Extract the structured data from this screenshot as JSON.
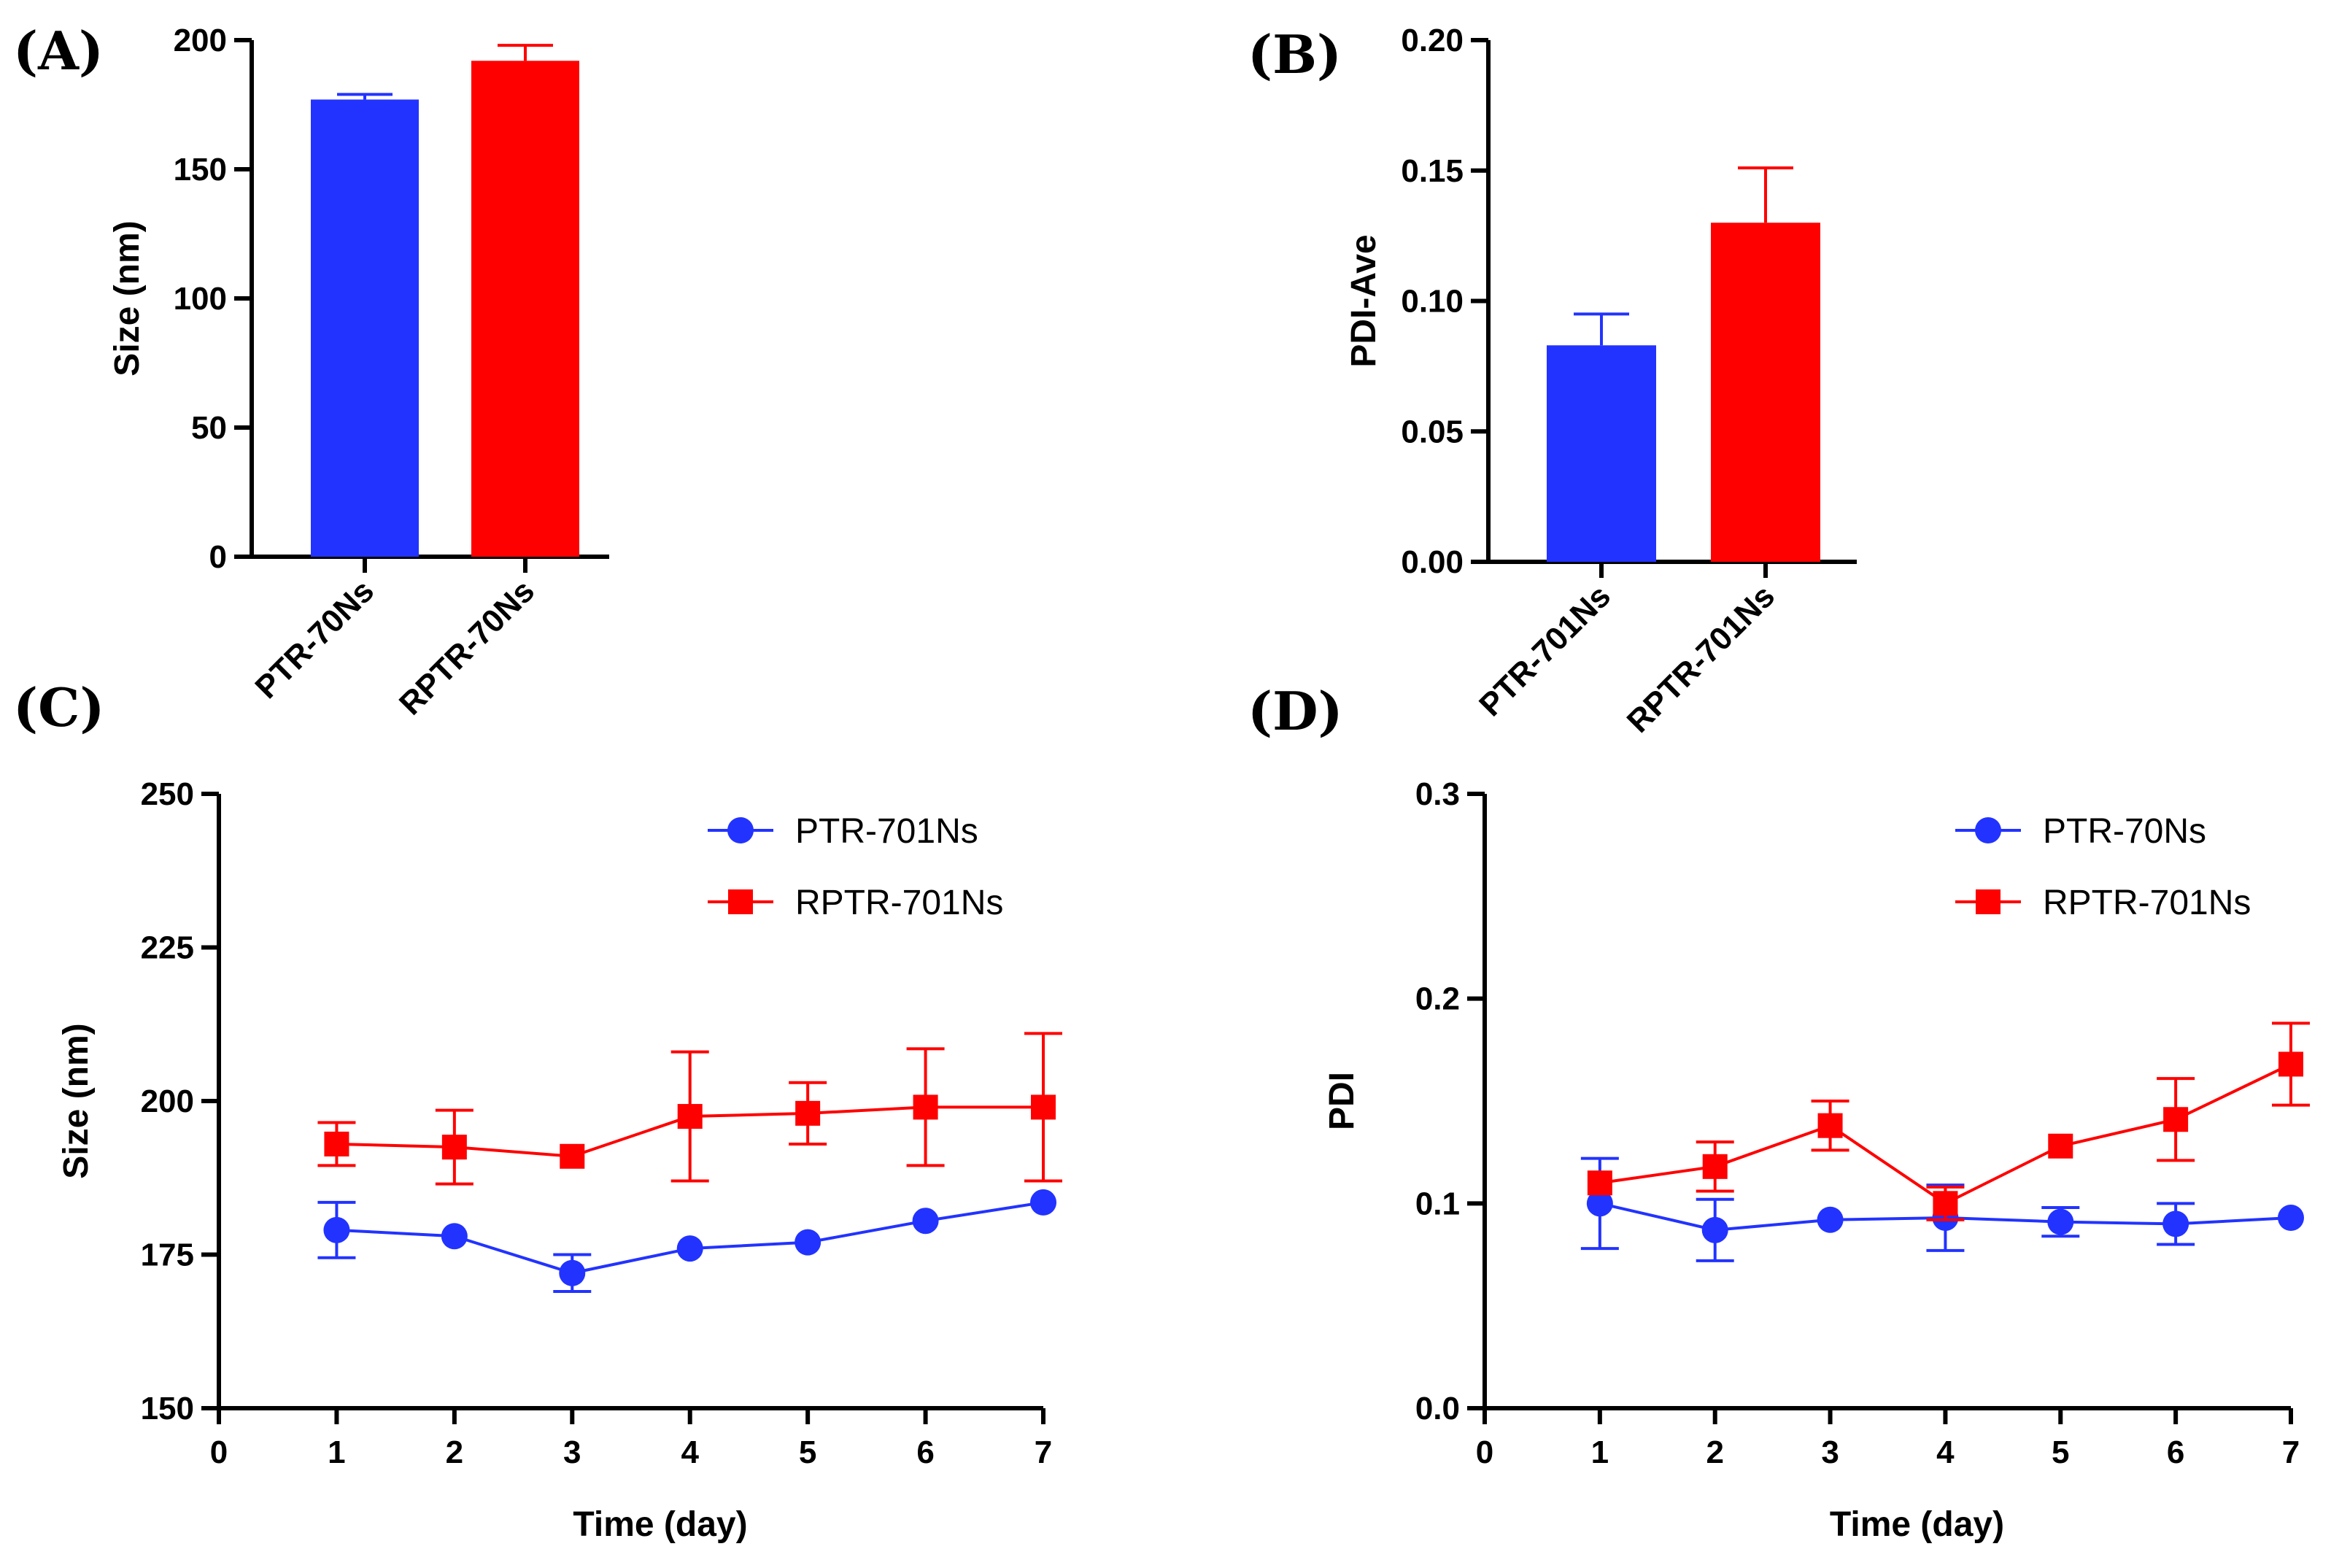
{
  "panels": [
    {
      "label": "(A)"
    },
    {
      "label": "(B)"
    },
    {
      "label": "(C)"
    },
    {
      "label": "(D)"
    }
  ],
  "chart_data": [
    {
      "id": "A",
      "type": "bar",
      "ylabel": "Size (nm)",
      "ylim": [
        0,
        200
      ],
      "yticks": [
        0,
        50,
        100,
        150,
        200
      ],
      "categories": [
        "PTR-70Ns",
        "RPTR-70Ns"
      ],
      "values": [
        177,
        192
      ],
      "errors": [
        2,
        6
      ],
      "colors": [
        "#2233ff",
        "#ff0000"
      ]
    },
    {
      "id": "B",
      "type": "bar",
      "ylabel": "PDI-Ave",
      "ylim": [
        0,
        0.2
      ],
      "yticks": [
        "0.00",
        "0.05",
        "0.10",
        "0.15",
        "0.20"
      ],
      "categories": [
        "PTR-701Ns",
        "RPTR-701Ns"
      ],
      "values": [
        0.083,
        0.13
      ],
      "errors": [
        0.012,
        0.021
      ],
      "colors": [
        "#2233ff",
        "#ff0000"
      ]
    },
    {
      "id": "C",
      "type": "line",
      "xlabel": "Time (day)",
      "ylabel": "Size (nm)",
      "xlim": [
        0,
        7
      ],
      "ylim": [
        150,
        250
      ],
      "xticks": [
        0,
        1,
        2,
        3,
        4,
        5,
        6,
        7
      ],
      "yticks": [
        150,
        175,
        200,
        225,
        250
      ],
      "x": [
        1,
        2,
        3,
        4,
        5,
        6,
        7
      ],
      "legend_position": "top-right",
      "series": [
        {
          "name": "PTR-701Ns",
          "marker": "circle",
          "color": "#2233ff",
          "values": [
            179,
            178,
            172,
            176,
            177,
            180.5,
            183.5
          ],
          "errors": [
            4.5,
            0,
            3,
            0,
            0,
            0,
            0
          ]
        },
        {
          "name": "RPTR-701Ns",
          "marker": "square",
          "color": "#ff0000",
          "values": [
            193,
            192.5,
            191,
            197.5,
            198,
            199,
            199
          ],
          "errors": [
            3.5,
            6,
            0,
            10.5,
            5,
            9.5,
            12
          ]
        }
      ]
    },
    {
      "id": "D",
      "type": "line",
      "xlabel": "Time (day)",
      "ylabel": "PDI",
      "xlim": [
        0,
        7
      ],
      "ylim": [
        0,
        0.3
      ],
      "xticks": [
        0,
        1,
        2,
        3,
        4,
        5,
        6,
        7
      ],
      "yticks": [
        "0.0",
        "0.1",
        "0.2",
        "0.3"
      ],
      "x": [
        1,
        2,
        3,
        4,
        5,
        6,
        7
      ],
      "legend_position": "top-right",
      "series": [
        {
          "name": "PTR-70Ns",
          "marker": "circle",
          "color": "#2233ff",
          "values": [
            0.1,
            0.087,
            0.092,
            0.093,
            0.091,
            0.09,
            0.093
          ],
          "errors": [
            0.022,
            0.015,
            0,
            0.016,
            0.007,
            0.01,
            0
          ]
        },
        {
          "name": "RPTR-701Ns",
          "marker": "square",
          "color": "#ff0000",
          "values": [
            0.11,
            0.118,
            0.138,
            0.1,
            0.128,
            0.141,
            0.168
          ],
          "errors": [
            0,
            0.012,
            0.012,
            0.008,
            0,
            0.02,
            0.02
          ]
        }
      ]
    }
  ]
}
